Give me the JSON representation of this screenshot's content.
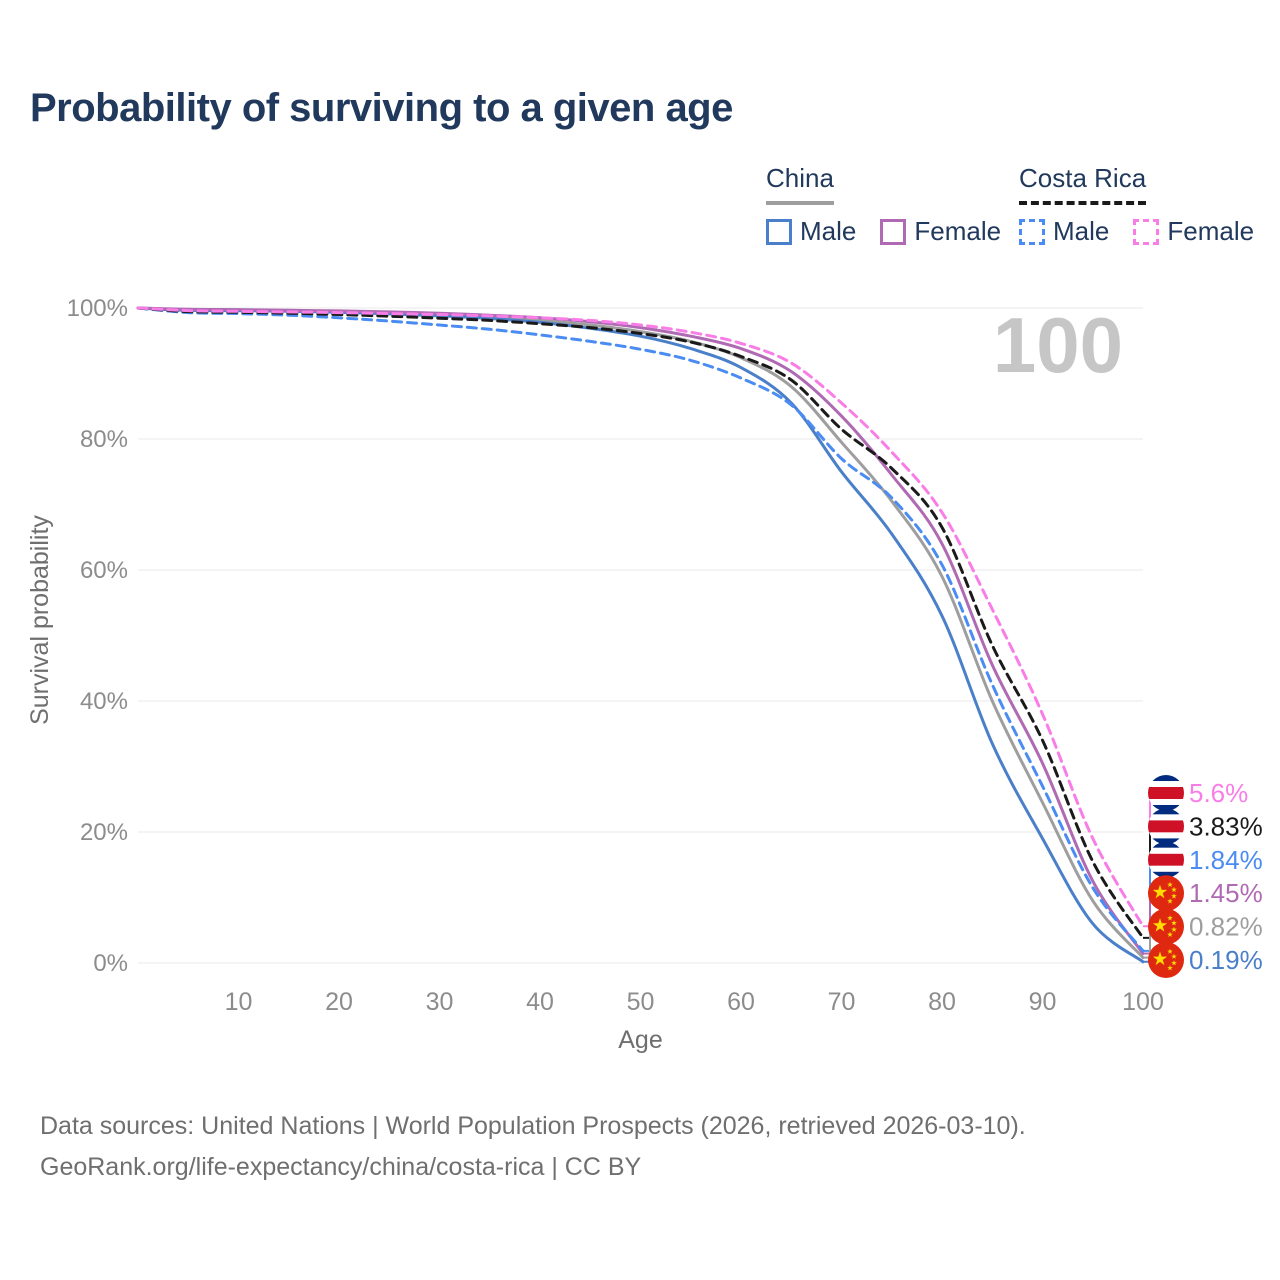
{
  "page": {
    "title": "Probability of surviving to a given age",
    "footer_line1": "Data sources: United Nations | World Population Prospects (2026, retrieved 2026-03-10).",
    "footer_line2": "GeoRank.org/life-expectancy/china/costa-rica | CC BY"
  },
  "legend": {
    "groups": [
      {
        "title": "China",
        "line_style": "solid",
        "underline_color": "#9e9e9e",
        "items": [
          {
            "label": "Male",
            "color": "#4a7fc9",
            "dashed": false
          },
          {
            "label": "Female",
            "color": "#b06ab4",
            "dashed": false
          }
        ]
      },
      {
        "title": "Costa Rica",
        "line_style": "dashed",
        "underline_color": "#1a1a1a",
        "items": [
          {
            "label": "Male",
            "color": "#4a8cf2",
            "dashed": true
          },
          {
            "label": "Female",
            "color": "#f97de6",
            "dashed": true
          }
        ]
      }
    ]
  },
  "chart_data": {
    "type": "line",
    "title": "Probability of surviving to a given age",
    "xlabel": "Age",
    "ylabel": "Survival probability",
    "watermark": "100",
    "xlim": [
      0,
      100
    ],
    "ylim": [
      0,
      100
    ],
    "grid": "horizontal",
    "x_ticks": [
      10,
      20,
      30,
      40,
      50,
      60,
      70,
      80,
      90,
      100
    ],
    "y_tick_values": [
      0,
      20,
      40,
      60,
      80,
      100
    ],
    "y_tick_labels": [
      "0%",
      "20%",
      "40%",
      "60%",
      "80%",
      "100%"
    ],
    "x": [
      0,
      5,
      10,
      15,
      20,
      25,
      30,
      35,
      40,
      45,
      50,
      55,
      60,
      65,
      70,
      75,
      80,
      85,
      90,
      95,
      100
    ],
    "series": [
      {
        "name": "China",
        "flag": "china",
        "color": "#9e9e9e",
        "dashed": false,
        "end_label": "0.82%",
        "values": [
          100,
          99.7,
          99.65,
          99.55,
          99.4,
          99.2,
          98.95,
          98.6,
          98.1,
          97.4,
          96.4,
          94.9,
          92.4,
          88.0,
          79.5,
          70.5,
          59.0,
          40.0,
          24.5,
          9.5,
          0.82
        ]
      },
      {
        "name": "China Male",
        "flag": "china",
        "color": "#4a7fc9",
        "dashed": false,
        "end_label": "0.19%",
        "values": [
          100,
          99.65,
          99.6,
          99.5,
          99.35,
          99.1,
          98.8,
          98.4,
          97.8,
          96.9,
          95.7,
          93.8,
          90.9,
          85.5,
          75.0,
          65.5,
          53.0,
          33.5,
          19.0,
          6.0,
          0.19
        ]
      },
      {
        "name": "China Female",
        "flag": "china",
        "color": "#b06ab4",
        "dashed": false,
        "end_label": "1.45%",
        "values": [
          100,
          99.8,
          99.75,
          99.65,
          99.55,
          99.4,
          99.2,
          98.9,
          98.5,
          97.9,
          97.0,
          95.7,
          93.8,
          90.3,
          83.5,
          74.5,
          64.0,
          45.5,
          30.5,
          12.5,
          1.45
        ]
      },
      {
        "name": "Costa Rica Male",
        "flag": "costa-rica",
        "color": "#4a8cf2",
        "dashed": true,
        "end_label": "1.84%",
        "values": [
          100,
          99.3,
          99.15,
          98.9,
          98.5,
          98.0,
          97.4,
          96.75,
          95.9,
          94.9,
          93.7,
          92.0,
          89.3,
          85.2,
          77.0,
          71.0,
          60.8,
          42.5,
          27.0,
          11.5,
          1.84
        ]
      },
      {
        "name": "Costa Rica",
        "flag": "costa-rica",
        "color": "#1a1a1a",
        "dashed": true,
        "end_label": "3.83%",
        "values": [
          100,
          99.45,
          99.35,
          99.2,
          99.0,
          98.75,
          98.45,
          98.1,
          97.6,
          97.0,
          96.1,
          94.8,
          92.6,
          89.0,
          81.5,
          75.5,
          66.5,
          48.5,
          34.0,
          15.5,
          3.83
        ]
      },
      {
        "name": "Costa Rica Female",
        "flag": "costa-rica",
        "color": "#f97de6",
        "dashed": true,
        "end_label": "5.6%",
        "values": [
          100,
          99.6,
          99.5,
          99.4,
          99.3,
          99.15,
          99.0,
          98.8,
          98.5,
          98.1,
          97.4,
          96.3,
          94.6,
          91.6,
          85.5,
          78.0,
          68.8,
          54.0,
          38.0,
          19.0,
          5.6
        ]
      }
    ],
    "colors": {
      "grid": "#e8e8e8",
      "tick_text": "#8c8c8c",
      "axis_title_text": "#6f6f6f",
      "watermark_text": "#c6c6c6",
      "flag_cr_blue": "#002b7f",
      "flag_cr_red": "#ce1126",
      "flag_cn_red": "#de2910",
      "flag_cn_yellow": "#ffde00"
    }
  }
}
